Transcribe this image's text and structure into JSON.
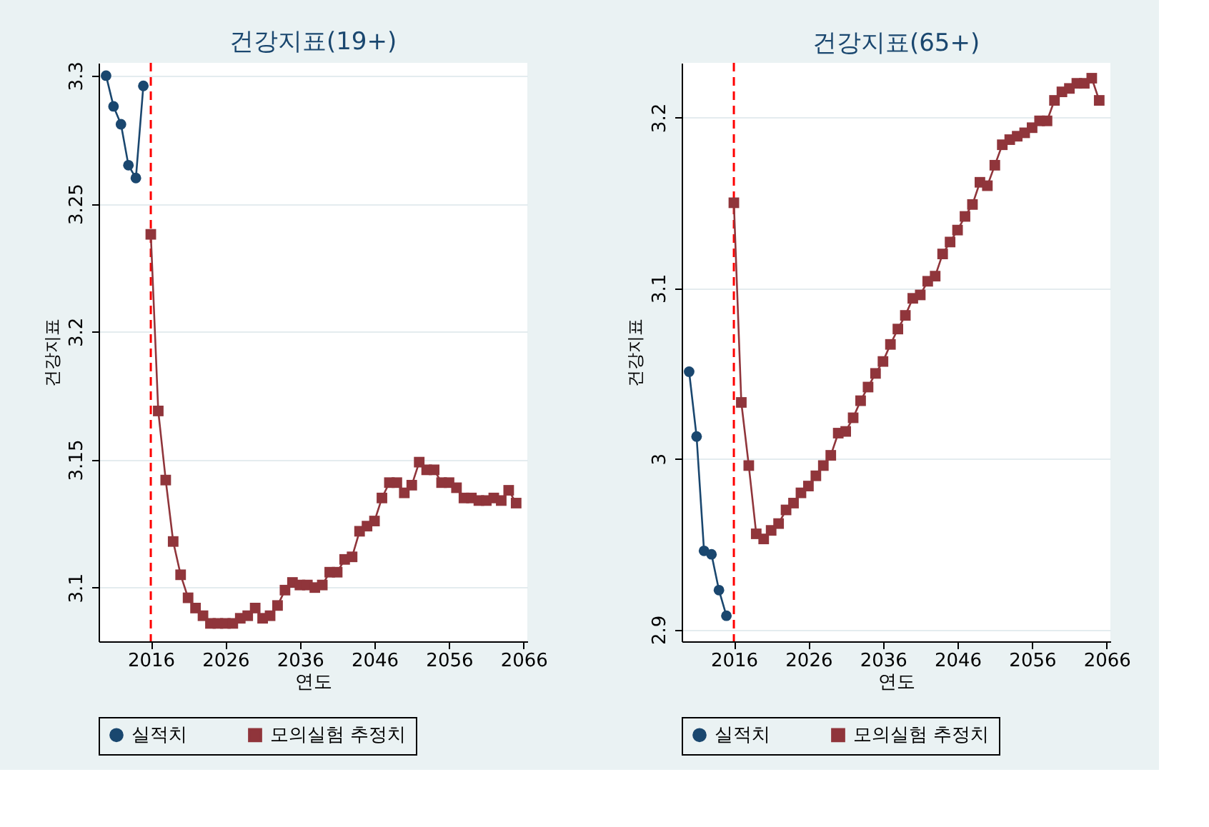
{
  "chart_data": [
    {
      "type": "line",
      "title": "건강지표(19+)",
      "xlabel": "연도",
      "ylabel": "건강지표",
      "xlim": [
        2009,
        2066.5
      ],
      "xticks": [
        2016,
        2026,
        2036,
        2046,
        2056,
        2066
      ],
      "ylim": [
        3.079,
        3.305
      ],
      "yticks": [
        3.1,
        3.15,
        3.2,
        3.25,
        3.3
      ],
      "grid": "y",
      "legend": "bottom",
      "ref_lines": [
        {
          "axis": "x",
          "value": 2016,
          "color": "#ff0000",
          "line_style": "dashed"
        }
      ],
      "series": [
        {
          "name": "실적치",
          "color": "#1a476f",
          "marker": "circle",
          "x": [
            2010,
            2011,
            2012,
            2013,
            2014,
            2015
          ],
          "values": [
            3.3,
            3.288,
            3.281,
            3.265,
            3.26,
            3.296
          ]
        },
        {
          "name": "모의실험 추정치",
          "color": "#90353b",
          "marker": "square",
          "x": [
            2016,
            2017,
            2018,
            2019,
            2020,
            2021,
            2022,
            2023,
            2024,
            2025,
            2026,
            2027,
            2028,
            2029,
            2030,
            2031,
            2032,
            2033,
            2034,
            2035,
            2036,
            2037,
            2038,
            2039,
            2040,
            2041,
            2042,
            2043,
            2044,
            2045,
            2046,
            2047,
            2048,
            2049,
            2050,
            2051,
            2052,
            2053,
            2054,
            2055,
            2056,
            2057,
            2058,
            2059,
            2060,
            2061,
            2062,
            2063,
            2064,
            2065
          ],
          "values": [
            3.238,
            3.169,
            3.142,
            3.118,
            3.105,
            3.096,
            3.092,
            3.089,
            3.086,
            3.086,
            3.086,
            3.086,
            3.088,
            3.089,
            3.092,
            3.088,
            3.089,
            3.093,
            3.099,
            3.102,
            3.101,
            3.101,
            3.1,
            3.101,
            3.106,
            3.106,
            3.111,
            3.112,
            3.122,
            3.124,
            3.126,
            3.135,
            3.141,
            3.141,
            3.137,
            3.14,
            3.149,
            3.146,
            3.146,
            3.141,
            3.141,
            3.139,
            3.135,
            3.135,
            3.134,
            3.134,
            3.135,
            3.134,
            3.138,
            3.133
          ]
        }
      ]
    },
    {
      "type": "line",
      "title": "건강지표(65+)",
      "xlabel": "연도",
      "ylabel": "건강지표",
      "xlim": [
        2009,
        2066.5
      ],
      "xticks": [
        2016,
        2026,
        2036,
        2046,
        2056,
        2066
      ],
      "ylim": [
        2.893,
        3.232
      ],
      "yticks": [
        2.9,
        3,
        3.1,
        3.2
      ],
      "grid": "y",
      "legend": "bottom",
      "ref_lines": [
        {
          "axis": "x",
          "value": 2016,
          "color": "#ff0000",
          "line_style": "dashed"
        }
      ],
      "series": [
        {
          "name": "실적치",
          "color": "#1a476f",
          "marker": "circle",
          "x": [
            2010,
            2011,
            2012,
            2013,
            2014,
            2015
          ],
          "values": [
            3.051,
            3.013,
            2.946,
            2.944,
            2.923,
            2.908
          ]
        },
        {
          "name": "모의실험 추정치",
          "color": "#90353b",
          "marker": "square",
          "x": [
            2016,
            2017,
            2018,
            2019,
            2020,
            2021,
            2022,
            2023,
            2024,
            2025,
            2026,
            2027,
            2028,
            2029,
            2030,
            2031,
            2032,
            2033,
            2034,
            2035,
            2036,
            2037,
            2038,
            2039,
            2040,
            2041,
            2042,
            2043,
            2044,
            2045,
            2046,
            2047,
            2048,
            2049,
            2050,
            2051,
            2052,
            2053,
            2054,
            2055,
            2056,
            2057,
            2058,
            2059,
            2060,
            2061,
            2062,
            2063,
            2064,
            2065
          ],
          "values": [
            3.15,
            3.033,
            2.996,
            2.956,
            2.953,
            2.958,
            2.962,
            2.97,
            2.974,
            2.98,
            2.984,
            2.99,
            2.996,
            3.002,
            3.015,
            3.016,
            3.024,
            3.034,
            3.042,
            3.05,
            3.057,
            3.067,
            3.076,
            3.084,
            3.094,
            3.096,
            3.104,
            3.107,
            3.12,
            3.127,
            3.134,
            3.142,
            3.149,
            3.162,
            3.16,
            3.172,
            3.184,
            3.187,
            3.189,
            3.191,
            3.194,
            3.198,
            3.198,
            3.21,
            3.215,
            3.217,
            3.22,
            3.22,
            3.223,
            3.21
          ]
        }
      ]
    }
  ]
}
